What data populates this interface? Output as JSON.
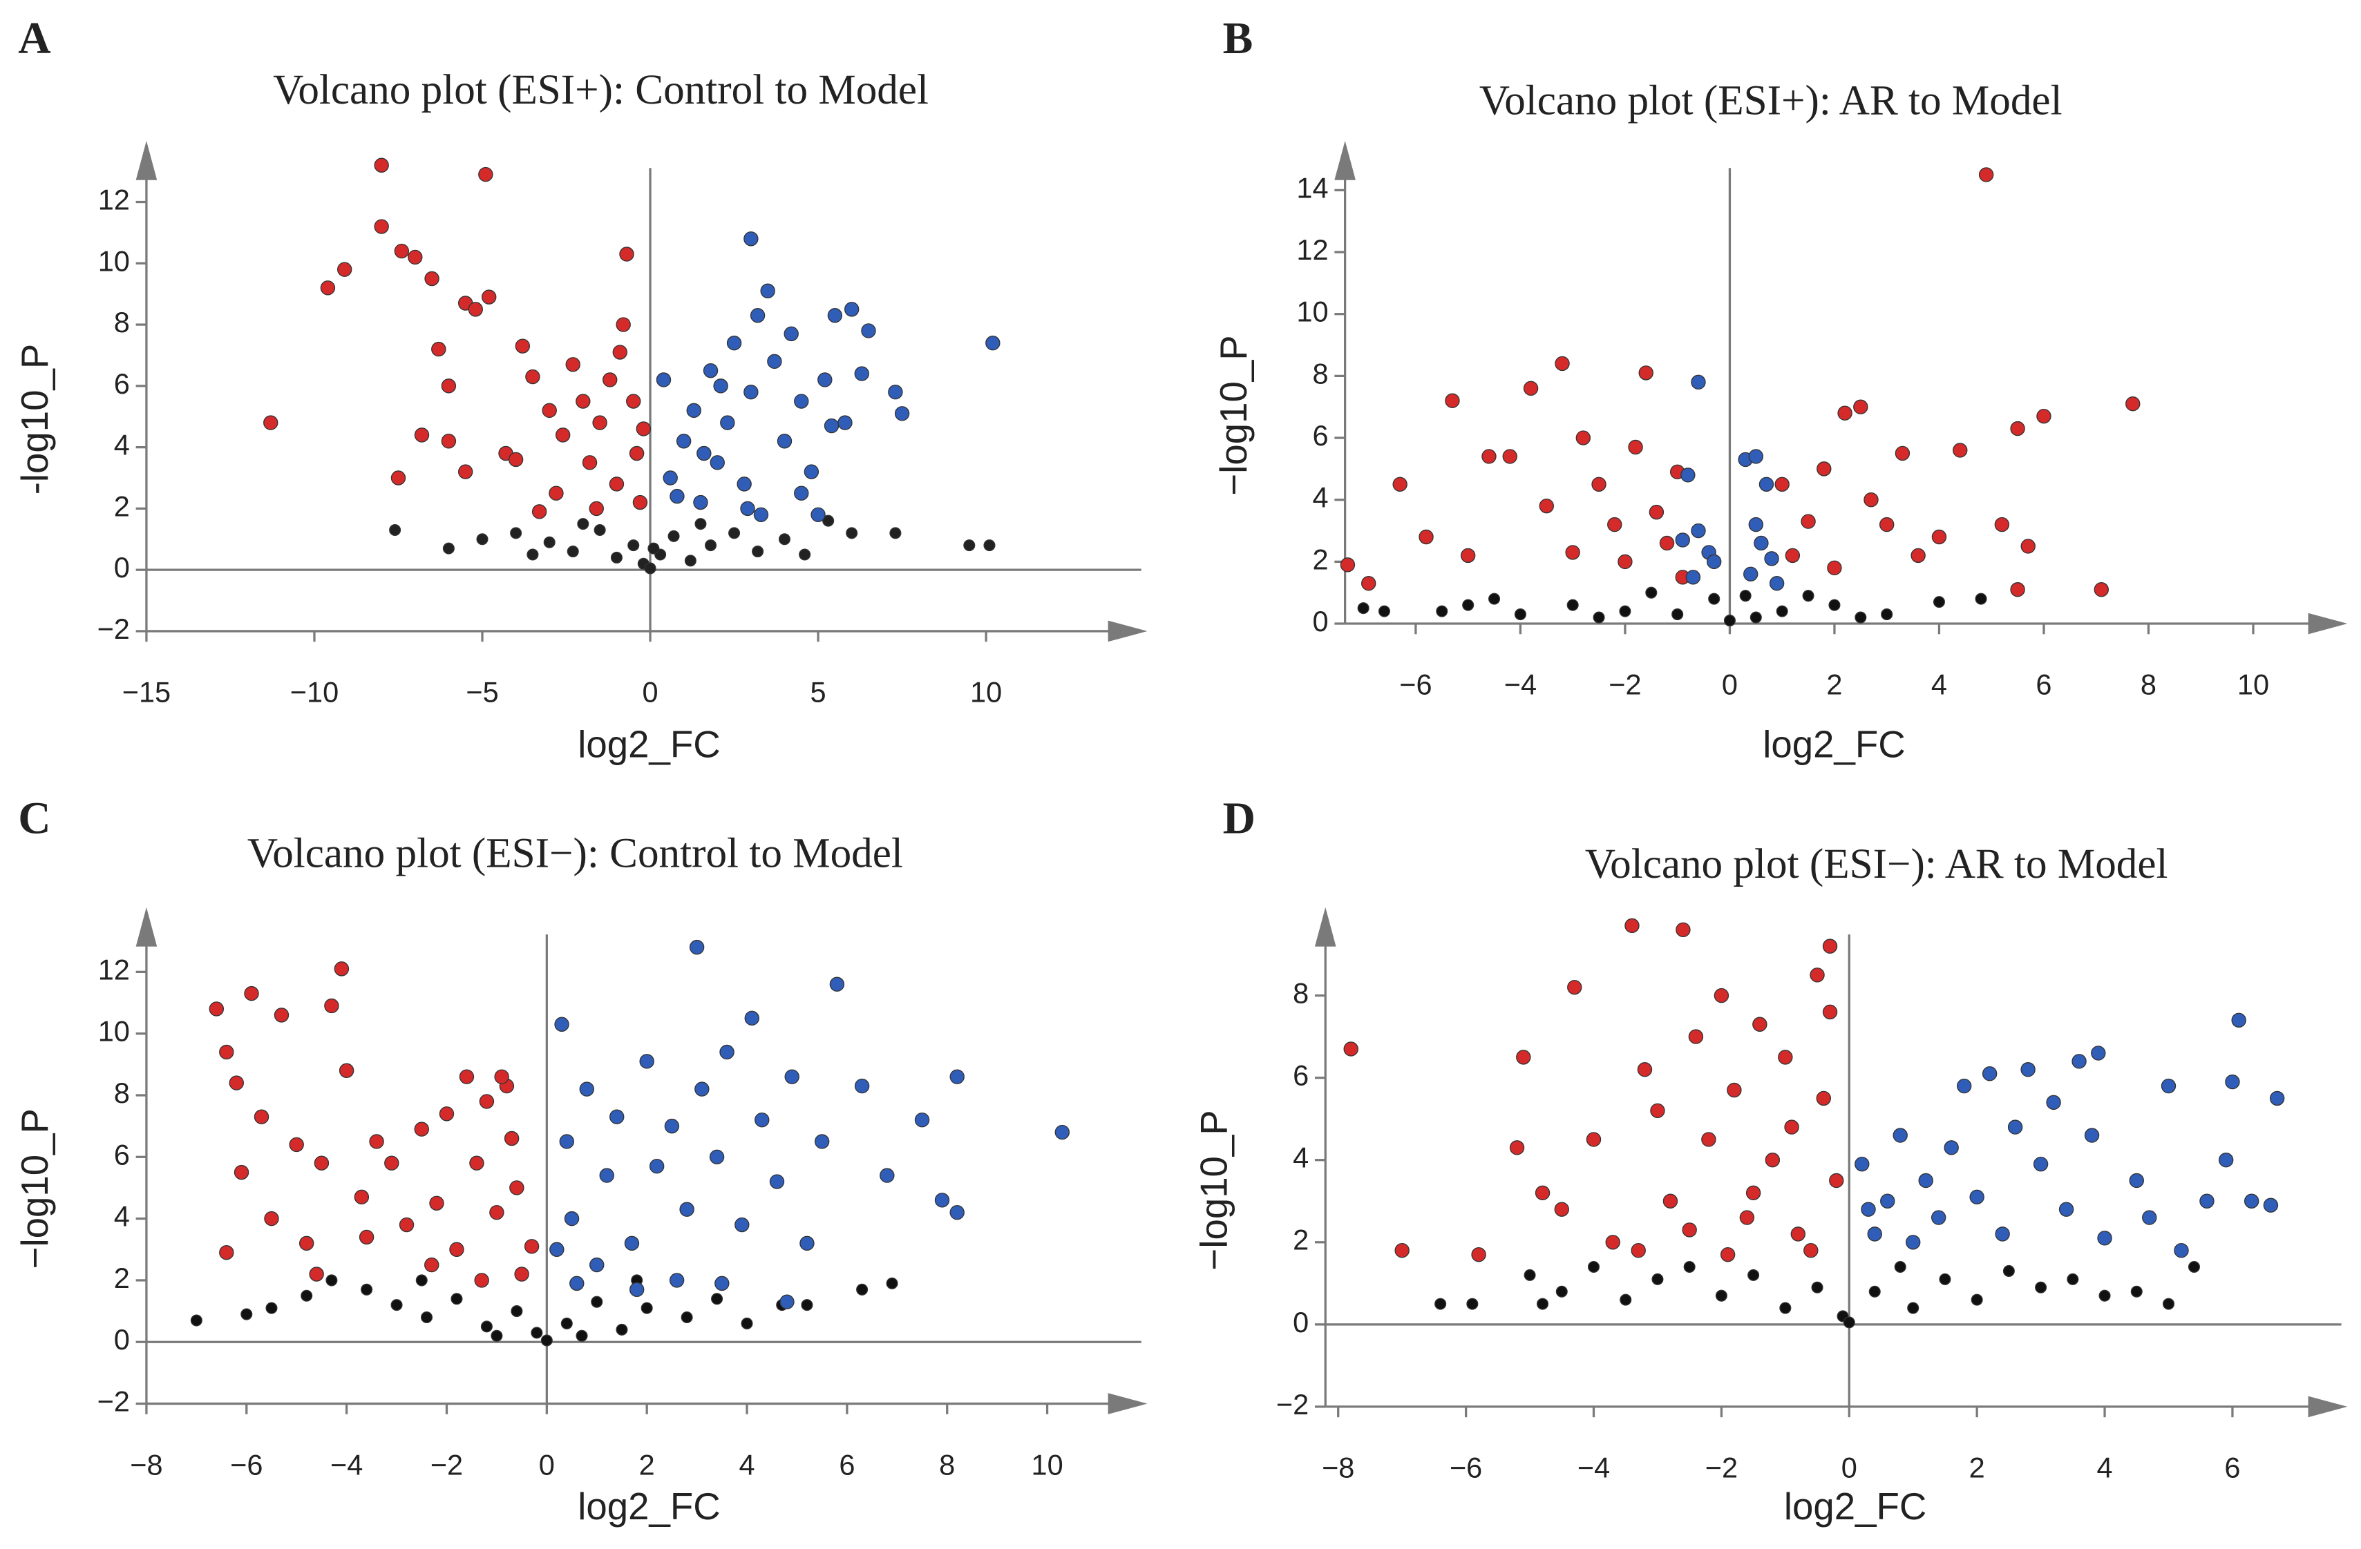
{
  "chart_data": [
    {
      "type": "scatter",
      "panel": "A",
      "title": "Volcano plot (ESI+): Control to Model",
      "x_label": "log2_FC",
      "y_label": "-log10_P",
      "xlim": [
        -15,
        14.8
      ],
      "ylim": [
        -2,
        13.8
      ],
      "xticks": [
        {
          "value": -15,
          "label": "−15"
        },
        {
          "value": -10,
          "label": "−10"
        },
        {
          "value": -5,
          "label": "−5"
        },
        0,
        5,
        10
      ],
      "yticks": [
        {
          "value": -2,
          "label": "−2"
        },
        0,
        2,
        4,
        6,
        8,
        10,
        12
      ],
      "series": [
        {
          "color": "#d42a2a",
          "x": [
            -11.3,
            -9.6,
            -9.1,
            -8,
            -8,
            -7.4,
            -7,
            -6.5,
            -6.3,
            -6,
            -5.5,
            -5.2,
            -4.9,
            -4.8,
            -7.5,
            -6.8,
            -6,
            -5.5,
            -4.3,
            -3.8,
            -3.5,
            -3,
            -2.6,
            -2.3,
            -2,
            -1.8,
            -1.5,
            -1.2,
            -1,
            -0.8,
            -0.7,
            -0.5,
            -0.4,
            -0.3,
            -1.6,
            -2.8,
            -4,
            -3.3,
            -0.9,
            -0.2
          ],
          "values": [
            4.8,
            9.2,
            9.8,
            13.2,
            11.2,
            10.4,
            10.2,
            9.5,
            7.2,
            6,
            8.7,
            8.5,
            12.9,
            8.9,
            3,
            4.4,
            4.2,
            3.2,
            3.8,
            7.3,
            6.3,
            5.2,
            4.4,
            6.7,
            5.5,
            3.5,
            4.8,
            6.2,
            2.8,
            8,
            10.3,
            5.5,
            3.8,
            2.2,
            2,
            2.5,
            3.6,
            1.9,
            7.1,
            4.6
          ]
        },
        {
          "color": "#2f5db8",
          "x": [
            0.4,
            0.6,
            1,
            1.3,
            1.5,
            1.8,
            2,
            2.3,
            2.5,
            2.8,
            3,
            3.2,
            3.5,
            3.7,
            4,
            4.2,
            4.5,
            4.8,
            5.2,
            5.5,
            5.8,
            6,
            6.3,
            6.5,
            7.3,
            7.5,
            10.2,
            3,
            2.9,
            0.8,
            1.6,
            3.3,
            4.5,
            5,
            5.4,
            2.1
          ],
          "values": [
            6.2,
            3,
            4.2,
            5.2,
            2.2,
            6.5,
            3.5,
            4.8,
            7.4,
            2.8,
            5.8,
            8.3,
            9.1,
            6.8,
            4.2,
            7.7,
            5.5,
            3.2,
            6.2,
            8.3,
            4.8,
            8.5,
            6.4,
            7.8,
            5.8,
            5.1,
            7.4,
            10.8,
            2,
            2.4,
            3.8,
            1.8,
            2.5,
            1.8,
            4.7,
            6
          ]
        },
        {
          "color": "#222222",
          "x": [
            -7.6,
            -6,
            -5,
            -4,
            -3,
            -2.3,
            -1.5,
            -1,
            -0.5,
            -0.2,
            0,
            0.3,
            0.7,
            1.2,
            1.8,
            2.5,
            3.2,
            4,
            5.3,
            6,
            7.3,
            9.5,
            10.1,
            -2,
            1.5,
            -3.5,
            4.6,
            0.1
          ],
          "values": [
            1.3,
            0.7,
            1,
            1.2,
            0.9,
            0.6,
            1.3,
            0.4,
            0.8,
            0.2,
            0.05,
            0.5,
            1.1,
            0.3,
            0.8,
            1.2,
            0.6,
            1,
            1.6,
            1.2,
            1.2,
            0.8,
            0.8,
            1.5,
            1.5,
            0.5,
            0.5,
            0.7
          ]
        }
      ]
    },
    {
      "type": "scatter",
      "panel": "B",
      "title": "Volcano plot (ESI+): AR to Model",
      "x_label": "log2_FC",
      "y_label": "−log10_P",
      "xlim": [
        -7.35,
        11.8
      ],
      "ylim": [
        0,
        15.4
      ],
      "xticks": [
        {
          "value": -6,
          "label": "−6"
        },
        {
          "value": -4,
          "label": "−4"
        },
        {
          "value": -2,
          "label": "−2"
        },
        0,
        2,
        4,
        6,
        8,
        10
      ],
      "yticks": [
        0,
        2,
        4,
        6,
        8,
        10,
        12,
        14
      ],
      "series": [
        {
          "color": "#d42a2a",
          "x": [
            -7.3,
            -6.9,
            -6.3,
            -5.8,
            -5.3,
            -5,
            -4.6,
            -4.2,
            -3.8,
            -3.5,
            -3.2,
            -3,
            -2.8,
            -2.5,
            -2.2,
            -2,
            -1.8,
            -1.6,
            -1.4,
            -1.2,
            -1,
            -0.9,
            1,
            1.2,
            1.5,
            1.8,
            2,
            2.2,
            2.5,
            2.7,
            3,
            3.3,
            3.6,
            4,
            4.4,
            4.9,
            5.2,
            5.5,
            5.7,
            6,
            7.1,
            7.7,
            5.5
          ],
          "values": [
            1.9,
            1.3,
            4.5,
            2.8,
            7.2,
            2.2,
            5.4,
            5.4,
            7.6,
            3.8,
            8.4,
            2.3,
            6,
            4.5,
            3.2,
            2,
            5.7,
            8.1,
            3.6,
            2.6,
            4.9,
            1.5,
            4.5,
            2.2,
            3.3,
            5,
            1.8,
            6.8,
            7,
            4,
            3.2,
            5.5,
            2.2,
            2.8,
            5.6,
            14.5,
            3.2,
            6.3,
            2.5,
            6.7,
            1.1,
            7.1,
            1.1
          ]
        },
        {
          "color": "#2f5db8",
          "x": [
            -0.6,
            -0.8,
            -0.6,
            -0.4,
            -0.7,
            -0.3,
            0.3,
            0.5,
            0.7,
            0.5,
            0.8,
            0.4,
            0.6,
            -0.9,
            0.9
          ],
          "values": [
            7.8,
            4.8,
            3,
            2.3,
            1.5,
            2,
            5.3,
            5.4,
            4.5,
            3.2,
            2.1,
            1.6,
            2.6,
            2.7,
            1.3
          ]
        },
        {
          "color": "#111111",
          "x": [
            -7,
            -6.6,
            -5.5,
            -5,
            -4,
            -3,
            -2,
            -1,
            -0.3,
            0,
            0.3,
            1,
            2,
            3,
            4,
            4.8,
            -4.5,
            -1.5,
            1.5,
            -2.5,
            2.5,
            0.5
          ],
          "values": [
            0.5,
            0.4,
            0.4,
            0.6,
            0.3,
            0.6,
            0.4,
            0.3,
            0.8,
            0.1,
            0.9,
            0.4,
            0.6,
            0.3,
            0.7,
            0.8,
            0.8,
            1,
            0.9,
            0.2,
            0.2,
            0.2
          ]
        }
      ]
    },
    {
      "type": "scatter",
      "panel": "C",
      "title": "Volcano plot (ESI−): Control to Model",
      "x_label": "log2_FC",
      "y_label": "−log10_P",
      "xlim": [
        -8,
        12
      ],
      "ylim": [
        -2,
        13.9
      ],
      "xticks": [
        {
          "value": -8,
          "label": "−8"
        },
        {
          "value": -6,
          "label": "−6"
        },
        {
          "value": -4,
          "label": "−4"
        },
        {
          "value": -2,
          "label": "−2"
        },
        0,
        2,
        4,
        6,
        8,
        10
      ],
      "yticks": [
        {
          "value": -2,
          "label": "−2"
        },
        0,
        2,
        4,
        6,
        8,
        10,
        12
      ],
      "series": [
        {
          "color": "#d42a2a",
          "x": [
            -6.6,
            -6.4,
            -6.2,
            -6.1,
            -5.9,
            -5.7,
            -5.5,
            -5.3,
            -5,
            -4.8,
            -4.5,
            -4.3,
            -4.1,
            -4,
            -3.7,
            -3.4,
            -3.1,
            -2.8,
            -2.5,
            -2.2,
            -2,
            -1.8,
            -1.6,
            -1.4,
            -1.2,
            -1,
            -0.8,
            -0.6,
            -0.5,
            -0.7,
            -2.3,
            -4.6,
            -6.4,
            -0.3,
            -1.3,
            -3.6,
            -0.9
          ],
          "values": [
            10.8,
            9.4,
            8.4,
            5.5,
            11.3,
            7.3,
            4,
            10.6,
            6.4,
            3.2,
            5.8,
            10.9,
            12.1,
            8.8,
            4.7,
            6.5,
            5.8,
            3.8,
            6.9,
            4.5,
            7.4,
            3,
            8.6,
            5.8,
            7.8,
            4.2,
            8.3,
            5,
            2.2,
            6.6,
            2.5,
            2.2,
            2.9,
            3.1,
            2,
            3.4,
            8.6
          ]
        },
        {
          "color": "#2f5db8",
          "x": [
            0.3,
            0.4,
            0.5,
            0.8,
            1,
            1.2,
            1.4,
            1.7,
            2,
            2.2,
            2.5,
            2.8,
            3,
            3.1,
            3.4,
            3.6,
            3.9,
            4.1,
            4.3,
            4.6,
            4.9,
            5.2,
            5.5,
            5.8,
            6.3,
            6.8,
            7.5,
            8.2,
            8.2,
            7.9,
            10.3,
            0.6,
            1.8,
            2.6,
            3.5,
            4.8,
            0.2
          ],
          "values": [
            10.3,
            6.5,
            4,
            8.2,
            2.5,
            5.4,
            7.3,
            3.2,
            9.1,
            5.7,
            7,
            4.3,
            12.8,
            8.2,
            6,
            9.4,
            3.8,
            10.5,
            7.2,
            5.2,
            8.6,
            3.2,
            6.5,
            11.6,
            8.3,
            5.4,
            7.2,
            8.6,
            4.2,
            4.6,
            6.8,
            1.9,
            1.7,
            2,
            1.9,
            1.3,
            3
          ]
        },
        {
          "color": "#111111",
          "x": [
            -7,
            -6,
            -5.5,
            -4.8,
            -4.3,
            -3.6,
            -3,
            -2.4,
            -1.8,
            -1.2,
            -0.6,
            -0.2,
            0,
            0.4,
            1,
            1.5,
            2,
            2.8,
            3.4,
            4,
            4.7,
            5.2,
            6.3,
            6.9,
            -2.5,
            1.8,
            0.7,
            -1
          ],
          "values": [
            0.7,
            0.9,
            1.1,
            1.5,
            2,
            1.7,
            1.2,
            0.8,
            1.4,
            0.5,
            1,
            0.3,
            0.05,
            0.6,
            1.3,
            0.4,
            1.1,
            0.8,
            1.4,
            0.6,
            1.2,
            1.2,
            1.7,
            1.9,
            2,
            2,
            0.2,
            0.2
          ]
        }
      ]
    },
    {
      "type": "scatter",
      "panel": "D",
      "title": "Volcano plot (ESI−): AR to Model",
      "x_label": "log2_FC",
      "y_label": "−log10_P",
      "xlim": [
        -8.2,
        7.8
      ],
      "ylim": [
        -2,
        10
      ],
      "xticks": [
        {
          "value": -8,
          "label": "−8"
        },
        {
          "value": -6,
          "label": "−6"
        },
        {
          "value": -4,
          "label": "−4"
        },
        {
          "value": -2,
          "label": "−2"
        },
        0,
        2,
        4,
        6
      ],
      "yticks": [
        {
          "value": -2,
          "label": "−2"
        },
        0,
        2,
        4,
        6,
        8
      ],
      "series": [
        {
          "color": "#d42a2a",
          "x": [
            -7.8,
            -7,
            -5.8,
            -5.1,
            -4.8,
            -4.3,
            -4,
            -3.7,
            -3.4,
            -3.2,
            -3,
            -2.8,
            -2.6,
            -2.4,
            -2.2,
            -2,
            -1.8,
            -1.6,
            -1.4,
            -1.2,
            -1,
            -0.8,
            -0.5,
            -0.3,
            -0.4,
            -0.2,
            -0.6,
            -1.5,
            -2.5,
            -3.3,
            -4.5,
            -5.2,
            -0.9,
            -1.9,
            -0.3
          ],
          "values": [
            6.7,
            1.8,
            1.7,
            6.5,
            3.2,
            8.2,
            4.5,
            2,
            9.7,
            6.2,
            5.2,
            3,
            9.6,
            7,
            4.5,
            8,
            5.7,
            2.6,
            7.3,
            4,
            6.5,
            2.2,
            8.5,
            9.2,
            5.5,
            3.5,
            1.8,
            3.2,
            2.3,
            1.8,
            2.8,
            4.3,
            4.8,
            1.7,
            7.6
          ]
        },
        {
          "color": "#2f5db8",
          "x": [
            0.2,
            0.4,
            0.6,
            0.8,
            1,
            1.2,
            1.4,
            1.6,
            1.8,
            2,
            2.2,
            2.4,
            2.6,
            2.8,
            3,
            3.2,
            3.4,
            3.6,
            3.8,
            4,
            4.5,
            4.7,
            5,
            5.2,
            5.6,
            5.9,
            6,
            6.1,
            6.3,
            6.6,
            6.7,
            3.9,
            0.3
          ],
          "values": [
            3.9,
            2.2,
            3,
            4.6,
            2,
            3.5,
            2.6,
            4.3,
            5.8,
            3.1,
            6.1,
            2.2,
            4.8,
            6.2,
            3.9,
            5.4,
            2.8,
            6.4,
            4.6,
            2.1,
            3.5,
            2.6,
            5.8,
            1.8,
            3,
            4,
            5.9,
            7.4,
            3,
            2.9,
            5.5,
            6.6,
            2.8
          ]
        },
        {
          "color": "#111111",
          "x": [
            -6.4,
            -5.9,
            -5,
            -4.5,
            -4,
            -3.5,
            -3,
            -2.5,
            -2,
            -1.5,
            -1,
            -0.5,
            -0.1,
            0,
            0.4,
            1,
            1.5,
            2,
            2.5,
            3,
            3.5,
            4,
            4.5,
            5,
            5.4,
            -4.8,
            0.8
          ],
          "values": [
            0.5,
            0.5,
            1.2,
            0.8,
            1.4,
            0.6,
            1.1,
            1.4,
            0.7,
            1.2,
            0.4,
            0.9,
            0.2,
            0.05,
            0.8,
            0.4,
            1.1,
            0.6,
            1.3,
            0.9,
            1.1,
            0.7,
            0.8,
            0.5,
            1.4,
            0.5,
            1.4
          ]
        }
      ]
    }
  ]
}
